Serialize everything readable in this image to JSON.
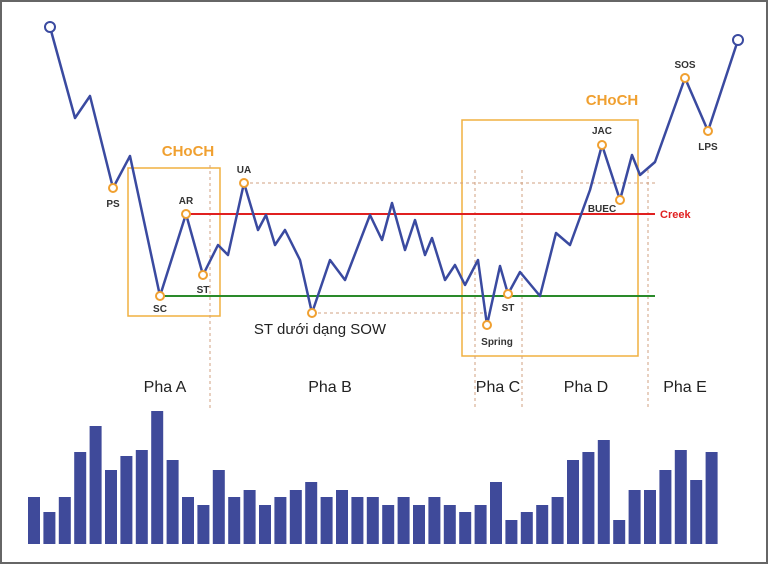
{
  "labels": {
    "ps": "PS",
    "sc": "SC",
    "ar": "AR",
    "st1": "ST",
    "ua": "UA",
    "st_sow": "ST dưới dạng SOW",
    "spring": "Spring",
    "st2": "ST",
    "jac": "JAC",
    "buec": "BUEC",
    "sos": "SOS",
    "lps": "LPS",
    "creek": "Creek",
    "choch1": "CHoCH",
    "choch2": "CHoCH"
  },
  "phases": [
    "Pha A",
    "Pha B",
    "Pha C",
    "Pha D",
    "Pha E"
  ],
  "volume": [
    47,
    32,
    47,
    92,
    118,
    74,
    88,
    94,
    133,
    84,
    47,
    39,
    74,
    47,
    54,
    39,
    47,
    54,
    62,
    47,
    54,
    47,
    47,
    39,
    47,
    39,
    47,
    39,
    32,
    39,
    62,
    24,
    32,
    39,
    47,
    84,
    92,
    104,
    24,
    54,
    54,
    74,
    94,
    64,
    92
  ]
}
